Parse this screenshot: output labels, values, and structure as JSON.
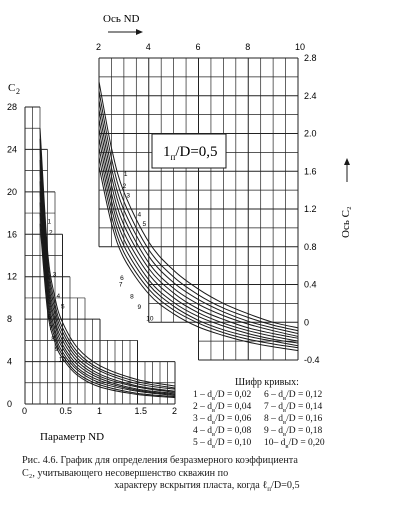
{
  "chart_data": [
    {
      "type": "line",
      "title": "",
      "xlabel": "Параметр ND",
      "ylabel": "C₂",
      "xlim": [
        0,
        2
      ],
      "ylim": [
        0,
        28
      ],
      "x_ticks": [
        "0",
        "0.5",
        "1",
        "1.5",
        "2"
      ],
      "y_ticks": [
        "0",
        "4",
        "8",
        "12",
        "16",
        "20",
        "24",
        "28"
      ],
      "grid": true,
      "series": [
        {
          "name": "1",
          "points": [
            [
              0.2,
              26.0
            ],
            [
              0.3,
              14.5
            ],
            [
              0.4,
              10.0
            ],
            [
              0.5,
              7.7
            ],
            [
              0.7,
              5.3
            ],
            [
              1.0,
              3.6
            ],
            [
              1.5,
              2.3
            ],
            [
              2.0,
              1.7
            ]
          ]
        },
        {
          "name": "2",
          "points": [
            [
              0.2,
              25.0
            ],
            [
              0.3,
              13.8
            ],
            [
              0.4,
              9.4
            ],
            [
              0.5,
              7.2
            ],
            [
              0.7,
              4.9
            ],
            [
              1.0,
              3.3
            ],
            [
              1.5,
              2.1
            ],
            [
              2.0,
              1.5
            ]
          ]
        },
        {
          "name": "3",
          "points": [
            [
              0.2,
              24.0
            ],
            [
              0.3,
              13.1
            ],
            [
              0.4,
              8.9
            ],
            [
              0.5,
              6.8
            ],
            [
              0.7,
              4.6
            ],
            [
              1.0,
              3.1
            ],
            [
              1.5,
              1.9
            ],
            [
              2.0,
              1.4
            ]
          ]
        },
        {
          "name": "4",
          "points": [
            [
              0.2,
              23.0
            ],
            [
              0.3,
              12.4
            ],
            [
              0.4,
              8.4
            ],
            [
              0.5,
              6.4
            ],
            [
              0.7,
              4.3
            ],
            [
              1.0,
              2.8
            ],
            [
              1.5,
              1.7
            ],
            [
              2.0,
              1.2
            ]
          ]
        },
        {
          "name": "5",
          "points": [
            [
              0.2,
              22.0
            ],
            [
              0.3,
              11.8
            ],
            [
              0.4,
              7.9
            ],
            [
              0.5,
              6.0
            ],
            [
              0.7,
              4.0
            ],
            [
              1.0,
              2.6
            ],
            [
              1.5,
              1.6
            ],
            [
              2.0,
              1.1
            ]
          ]
        },
        {
          "name": "6",
          "points": [
            [
              0.2,
              21.0
            ],
            [
              0.3,
              11.2
            ],
            [
              0.4,
              7.5
            ],
            [
              0.5,
              5.6
            ],
            [
              0.7,
              3.7
            ],
            [
              1.0,
              2.4
            ],
            [
              1.5,
              1.4
            ],
            [
              2.0,
              1.0
            ]
          ]
        },
        {
          "name": "7",
          "points": [
            [
              0.2,
              20.0
            ],
            [
              0.3,
              10.6
            ],
            [
              0.4,
              7.0
            ],
            [
              0.5,
              5.3
            ],
            [
              0.7,
              3.4
            ],
            [
              1.0,
              2.2
            ],
            [
              1.5,
              1.3
            ],
            [
              2.0,
              0.9
            ]
          ]
        },
        {
          "name": "8",
          "points": [
            [
              0.2,
              19.0
            ],
            [
              0.3,
              10.0
            ],
            [
              0.4,
              6.6
            ],
            [
              0.5,
              4.9
            ],
            [
              0.7,
              3.2
            ],
            [
              1.0,
              2.0
            ],
            [
              1.5,
              1.2
            ],
            [
              2.0,
              0.8
            ]
          ]
        },
        {
          "name": "9",
          "points": [
            [
              0.2,
              18.0
            ],
            [
              0.3,
              9.4
            ],
            [
              0.4,
              6.2
            ],
            [
              0.5,
              4.6
            ],
            [
              0.7,
              2.9
            ],
            [
              1.0,
              1.8
            ],
            [
              1.5,
              1.0
            ],
            [
              2.0,
              0.7
            ]
          ]
        },
        {
          "name": "10",
          "points": [
            [
              0.2,
              17.0
            ],
            [
              0.3,
              8.8
            ],
            [
              0.4,
              5.8
            ],
            [
              0.5,
              4.3
            ],
            [
              0.7,
              2.7
            ],
            [
              1.0,
              1.6
            ],
            [
              1.5,
              0.9
            ],
            [
              2.0,
              0.6
            ]
          ]
        }
      ]
    },
    {
      "type": "line",
      "title": "",
      "xlabel": "Ось ND",
      "ylabel": "Ось C₂",
      "xlim": [
        2,
        10
      ],
      "ylim": [
        -0.4,
        2.8
      ],
      "x_ticks": [
        "2",
        "4",
        "6",
        "8",
        "10"
      ],
      "y_ticks": [
        "-0.4",
        "0",
        "0.4",
        "0.8",
        "1.2",
        "1.6",
        "2.0",
        "2.4",
        "2.8"
      ],
      "grid": true,
      "series": [
        {
          "name": "1",
          "points": [
            [
              2.0,
              2.55
            ],
            [
              2.5,
              1.85
            ],
            [
              3.0,
              1.38
            ],
            [
              4.0,
              0.85
            ],
            [
              5.0,
              0.55
            ],
            [
              6.0,
              0.35
            ],
            [
              7.0,
              0.2
            ],
            [
              8.0,
              0.09
            ],
            [
              9.0,
              0.0
            ],
            [
              10.0,
              -0.06
            ]
          ]
        },
        {
          "name": "2",
          "points": [
            [
              2.0,
              2.45
            ],
            [
              2.5,
              1.74
            ],
            [
              3.0,
              1.28
            ],
            [
              4.0,
              0.77
            ],
            [
              5.0,
              0.48
            ],
            [
              6.0,
              0.29
            ],
            [
              7.0,
              0.15
            ],
            [
              8.0,
              0.05
            ],
            [
              9.0,
              -0.03
            ],
            [
              10.0,
              -0.09
            ]
          ]
        },
        {
          "name": "3",
          "points": [
            [
              2.0,
              2.35
            ],
            [
              2.5,
              1.64
            ],
            [
              3.0,
              1.19
            ],
            [
              4.0,
              0.7
            ],
            [
              5.0,
              0.42
            ],
            [
              6.0,
              0.24
            ],
            [
              7.0,
              0.11
            ],
            [
              8.0,
              0.01
            ],
            [
              9.0,
              -0.06
            ],
            [
              10.0,
              -0.12
            ]
          ]
        },
        {
          "name": "4",
          "points": [
            [
              2.0,
              2.25
            ],
            [
              2.5,
              1.55
            ],
            [
              3.0,
              1.11
            ],
            [
              4.0,
              0.63
            ],
            [
              5.0,
              0.36
            ],
            [
              6.0,
              0.19
            ],
            [
              7.0,
              0.07
            ],
            [
              8.0,
              -0.02
            ],
            [
              9.0,
              -0.09
            ],
            [
              10.0,
              -0.15
            ]
          ]
        },
        {
          "name": "5",
          "points": [
            [
              2.0,
              2.15
            ],
            [
              2.5,
              1.46
            ],
            [
              3.0,
              1.03
            ],
            [
              4.0,
              0.57
            ],
            [
              5.0,
              0.31
            ],
            [
              6.0,
              0.14
            ],
            [
              7.0,
              0.03
            ],
            [
              8.0,
              -0.06
            ],
            [
              9.0,
              -0.12
            ],
            [
              10.0,
              -0.17
            ]
          ]
        },
        {
          "name": "6",
          "points": [
            [
              2.0,
              2.05
            ],
            [
              2.5,
              1.37
            ],
            [
              3.0,
              0.95
            ],
            [
              4.0,
              0.51
            ],
            [
              5.0,
              0.26
            ],
            [
              6.0,
              0.1
            ],
            [
              7.0,
              -0.01
            ],
            [
              8.0,
              -0.09
            ],
            [
              9.0,
              -0.15
            ],
            [
              10.0,
              -0.2
            ]
          ]
        },
        {
          "name": "7",
          "points": [
            [
              2.0,
              1.95
            ],
            [
              2.5,
              1.29
            ],
            [
              3.0,
              0.88
            ],
            [
              4.0,
              0.45
            ],
            [
              5.0,
              0.21
            ],
            [
              6.0,
              0.06
            ],
            [
              7.0,
              -0.04
            ],
            [
              8.0,
              -0.12
            ],
            [
              9.0,
              -0.18
            ],
            [
              10.0,
              -0.22
            ]
          ]
        },
        {
          "name": "8",
          "points": [
            [
              2.0,
              1.85
            ],
            [
              2.5,
              1.21
            ],
            [
              3.0,
              0.81
            ],
            [
              4.0,
              0.4
            ],
            [
              5.0,
              0.17
            ],
            [
              6.0,
              0.02
            ],
            [
              7.0,
              -0.08
            ],
            [
              8.0,
              -0.15
            ],
            [
              9.0,
              -0.2
            ],
            [
              10.0,
              -0.25
            ]
          ]
        },
        {
          "name": "9",
          "points": [
            [
              2.0,
              1.75
            ],
            [
              2.5,
              1.13
            ],
            [
              3.0,
              0.74
            ],
            [
              4.0,
              0.35
            ],
            [
              5.0,
              0.13
            ],
            [
              6.0,
              -0.01
            ],
            [
              7.0,
              -0.11
            ],
            [
              8.0,
              -0.18
            ],
            [
              9.0,
              -0.23
            ],
            [
              10.0,
              -0.27
            ]
          ]
        },
        {
          "name": "10",
          "points": [
            [
              2.0,
              1.65
            ],
            [
              2.5,
              1.05
            ],
            [
              3.0,
              0.68
            ],
            [
              4.0,
              0.3
            ],
            [
              5.0,
              0.09
            ],
            [
              6.0,
              -0.05
            ],
            [
              7.0,
              -0.14
            ],
            [
              8.0,
              -0.21
            ],
            [
              9.0,
              -0.26
            ],
            [
              10.0,
              -0.3
            ]
          ]
        }
      ]
    }
  ],
  "annotation": {
    "prefix": "1",
    "sub": "п",
    "suffix": "/D=0,5"
  },
  "legend": {
    "title": "Шифр кривых:",
    "items": [
      {
        "num": "1 –",
        "frac": "d",
        "sub": "в",
        "rest": "/D = 0,02"
      },
      {
        "num": "2 –",
        "frac": "d",
        "sub": "в",
        "rest": "/D = 0,04"
      },
      {
        "num": "3 –",
        "frac": "d",
        "sub": "в",
        "rest": "/D = 0,06"
      },
      {
        "num": "4 –",
        "frac": "d",
        "sub": "в",
        "rest": "/D = 0,08"
      },
      {
        "num": "5 –",
        "frac": "d",
        "sub": "в",
        "rest": "/D = 0,10"
      },
      {
        "num": "6 –",
        "frac": "d",
        "sub": "в",
        "rest": "/D = 0,12"
      },
      {
        "num": "7 –",
        "frac": "d",
        "sub": "в",
        "rest": "/D = 0,14"
      },
      {
        "num": "8 –",
        "frac": "d",
        "sub": "в",
        "rest": "/D = 0,16"
      },
      {
        "num": "9 –",
        "frac": "d",
        "sub": "в",
        "rest": "/D = 0,18"
      },
      {
        "num": "10–",
        "frac": "d",
        "sub": "в",
        "rest": "/D = 0,20"
      }
    ]
  },
  "caption": {
    "line1": "Рис. 4.6. График для определения безразмерного коэффициента",
    "line2": "C₂,  учитывающего  несовершенство  скважин  по",
    "line3": "характеру вскрытия пласта, когда ℓ",
    "line3_sub": "п",
    "line3_end": "/D=0,5"
  },
  "colors": {
    "ink": "#1a1a1a",
    "grid": "#222222",
    "paper": "#ffffff"
  }
}
